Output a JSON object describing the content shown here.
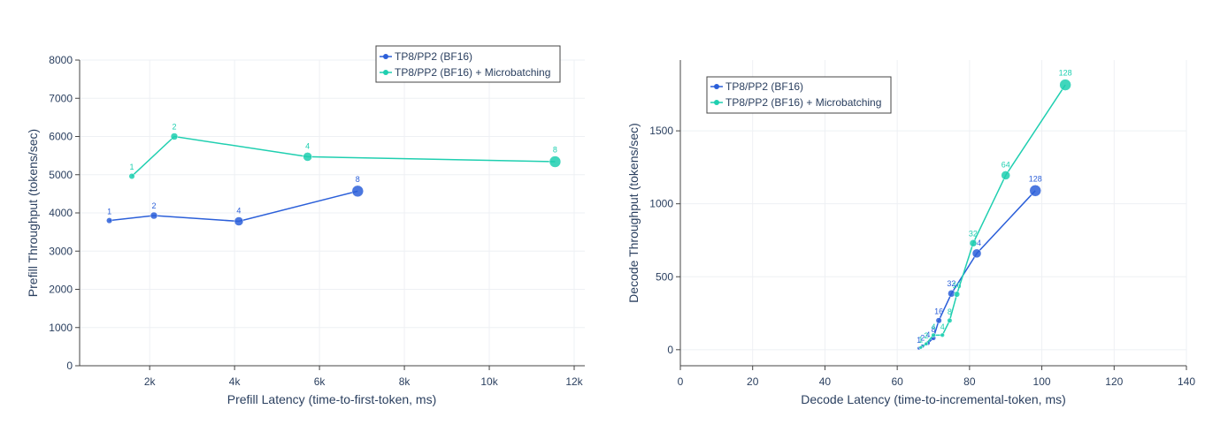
{
  "colors": {
    "series_a": "#2b5fd9",
    "series_b": "#1fcfb0",
    "text": "#2a3f5f"
  },
  "chart_data": [
    {
      "type": "scatter",
      "xlabel": "Prefill Latency (time-to-first-token, ms)",
      "ylabel": "Prefill Throughput (tokens/sec)",
      "xlim": [
        350,
        12250
      ],
      "ylim": [
        0,
        8000
      ],
      "xticks": [
        2000,
        4000,
        6000,
        8000,
        10000,
        12000
      ],
      "xtick_labels": [
        "2k",
        "4k",
        "6k",
        "8k",
        "10k",
        "12k"
      ],
      "yticks": [
        0,
        1000,
        2000,
        3000,
        4000,
        5000,
        6000,
        7000,
        8000
      ],
      "ytick_labels": [
        "0",
        "1000",
        "2000",
        "3000",
        "4000",
        "5000",
        "6000",
        "7000",
        "8000"
      ],
      "grid": true,
      "legend_position": "top-right",
      "series": [
        {
          "name": "TP8/PP2 (BF16)",
          "color_key": "series_a",
          "x": [
            1050,
            2100,
            4100,
            6900
          ],
          "y": [
            3800,
            3930,
            3780,
            4570
          ],
          "labels": [
            "1",
            "2",
            "4",
            "8"
          ],
          "sizes": [
            1,
            2,
            4,
            8
          ]
        },
        {
          "name": "TP8/PP2 (BF16) + Microbatching",
          "color_key": "series_b",
          "x": [
            1580,
            2580,
            5720,
            11550
          ],
          "y": [
            4960,
            6000,
            5470,
            5340
          ],
          "labels": [
            "1",
            "2",
            "4",
            "8"
          ],
          "sizes": [
            1,
            2,
            4,
            8
          ]
        }
      ]
    },
    {
      "type": "scatter",
      "xlabel": "Decode Latency (time-to-incremental-token, ms)",
      "ylabel": "Decode Throughput (tokens/sec)",
      "xlim": [
        0,
        140
      ],
      "ylim": [
        -110,
        1985
      ],
      "xticks": [
        0,
        20,
        40,
        60,
        80,
        100,
        120,
        140
      ],
      "xtick_labels": [
        "0",
        "20",
        "40",
        "60",
        "80",
        "100",
        "120",
        "140"
      ],
      "yticks": [
        0,
        500,
        1000,
        1500
      ],
      "ytick_labels": [
        "0",
        "500",
        "1000",
        "1500"
      ],
      "grid": true,
      "legend_position": "top-left",
      "series": [
        {
          "name": "TP8/PP2 (BF16)",
          "color_key": "series_a",
          "x": [
            66,
            67,
            68.5,
            70,
            71.5,
            75,
            82,
            98.2
          ],
          "y": [
            10,
            25,
            45,
            80,
            200,
            385,
            660,
            1090
          ],
          "labels": [
            "1",
            "2",
            "4",
            "8",
            "16",
            "32",
            "64",
            "128"
          ],
          "sizes": [
            1,
            2,
            4,
            8,
            16,
            32,
            64,
            128
          ]
        },
        {
          "name": "TP8/PP2 (BF16) + Microbatching",
          "color_key": "series_b",
          "x": [
            66.5,
            68,
            70,
            72.5,
            74.5,
            76.5,
            81,
            90,
            106.5
          ],
          "y": [
            15,
            40,
            100,
            100,
            200,
            380,
            730,
            1195,
            1815
          ],
          "labels": [
            "1",
            "2",
            "4",
            "4",
            "8",
            "16",
            "32",
            "64",
            "128"
          ],
          "sizes": [
            1,
            2,
            4,
            4,
            8,
            16,
            32,
            64,
            128
          ]
        }
      ]
    }
  ]
}
